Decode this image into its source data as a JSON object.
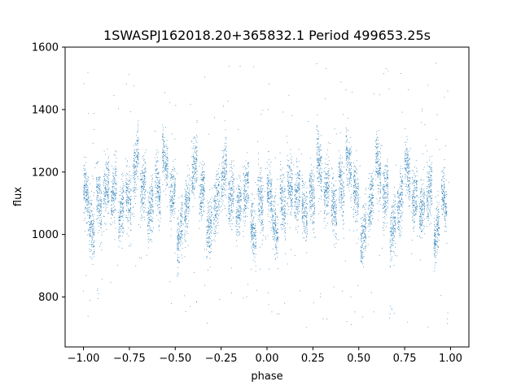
{
  "chart_data": {
    "type": "scatter",
    "title": "1SWASPJ162018.20+365832.1 Period 499653.25s",
    "xlabel": "phase",
    "ylabel": "flux",
    "xlim": [
      -1.1,
      1.1
    ],
    "ylim": [
      640,
      1600
    ],
    "x_ticks": [
      -1.0,
      -0.75,
      -0.5,
      -0.25,
      0.0,
      0.25,
      0.5,
      0.75,
      1.0
    ],
    "x_tick_labels": [
      "−1.00",
      "−0.75",
      "−0.50",
      "−0.25",
      "0.00",
      "0.25",
      "0.50",
      "0.75",
      "1.00"
    ],
    "y_ticks": [
      800,
      1000,
      1200,
      1400,
      1600
    ],
    "y_tick_labels": [
      "800",
      "1000",
      "1200",
      "1400",
      "1600"
    ],
    "grid": false,
    "point_color": "#1f77b4",
    "series": [
      {
        "x_range": [
          -1.0,
          1.0
        ],
        "segments": [
          {
            "phase": -0.985,
            "mean": 1130,
            "slope": 2200,
            "w": 0.03
          },
          {
            "phase": -0.955,
            "mean": 1020,
            "slope": 1800,
            "w": 0.03
          },
          {
            "phase": -0.915,
            "mean": 1100,
            "slope": 2500,
            "w": 0.03
          },
          {
            "phase": -0.875,
            "mean": 1150,
            "slope": 1500,
            "w": 0.03
          },
          {
            "phase": -0.835,
            "mean": 1130,
            "slope": 2000,
            "w": 0.03
          },
          {
            "phase": -0.795,
            "mean": 1070,
            "slope": 2400,
            "w": 0.03
          },
          {
            "phase": -0.755,
            "mean": 1120,
            "slope": 1800,
            "w": 0.03
          },
          {
            "phase": -0.715,
            "mean": 1230,
            "slope": 2600,
            "w": 0.03
          },
          {
            "phase": -0.675,
            "mean": 1150,
            "slope": 1600,
            "w": 0.03
          },
          {
            "phase": -0.635,
            "mean": 1080,
            "slope": 2000,
            "w": 0.03
          },
          {
            "phase": -0.595,
            "mean": 1150,
            "slope": 2400,
            "w": 0.03
          },
          {
            "phase": -0.555,
            "mean": 1230,
            "slope": 2800,
            "w": 0.03
          },
          {
            "phase": -0.515,
            "mean": 1130,
            "slope": 1500,
            "w": 0.03
          },
          {
            "phase": -0.475,
            "mean": 1000,
            "slope": 2200,
            "w": 0.03
          },
          {
            "phase": -0.435,
            "mean": 1100,
            "slope": 2400,
            "w": 0.03
          },
          {
            "phase": -0.395,
            "mean": 1220,
            "slope": 2000,
            "w": 0.03
          },
          {
            "phase": -0.355,
            "mean": 1130,
            "slope": 1800,
            "w": 0.03
          },
          {
            "phase": -0.315,
            "mean": 1020,
            "slope": 2200,
            "w": 0.03
          },
          {
            "phase": -0.275,
            "mean": 1100,
            "slope": 2400,
            "w": 0.03
          },
          {
            "phase": -0.235,
            "mean": 1200,
            "slope": 2600,
            "w": 0.03
          },
          {
            "phase": -0.195,
            "mean": 1120,
            "slope": 1600,
            "w": 0.03
          },
          {
            "phase": -0.155,
            "mean": 1080,
            "slope": 2000,
            "w": 0.03
          },
          {
            "phase": -0.115,
            "mean": 1140,
            "slope": 2200,
            "w": 0.03
          },
          {
            "phase": -0.075,
            "mean": 1010,
            "slope": 1800,
            "w": 0.03
          },
          {
            "phase": -0.035,
            "mean": 1110,
            "slope": 2400,
            "w": 0.03
          },
          {
            "phase": 0.015,
            "mean": 1130,
            "slope": 2200,
            "w": 0.03
          },
          {
            "phase": 0.045,
            "mean": 1020,
            "slope": 1800,
            "w": 0.03
          },
          {
            "phase": 0.085,
            "mean": 1100,
            "slope": 2500,
            "w": 0.03
          },
          {
            "phase": 0.125,
            "mean": 1150,
            "slope": 1500,
            "w": 0.03
          },
          {
            "phase": 0.165,
            "mean": 1130,
            "slope": 2000,
            "w": 0.03
          },
          {
            "phase": 0.205,
            "mean": 1070,
            "slope": 2400,
            "w": 0.03
          },
          {
            "phase": 0.245,
            "mean": 1120,
            "slope": 1800,
            "w": 0.03
          },
          {
            "phase": 0.285,
            "mean": 1230,
            "slope": 2600,
            "w": 0.03
          },
          {
            "phase": 0.325,
            "mean": 1150,
            "slope": 1600,
            "w": 0.03
          },
          {
            "phase": 0.365,
            "mean": 1080,
            "slope": 2000,
            "w": 0.03
          },
          {
            "phase": 0.405,
            "mean": 1150,
            "slope": 2400,
            "w": 0.03
          },
          {
            "phase": 0.445,
            "mean": 1230,
            "slope": 2800,
            "w": 0.03
          },
          {
            "phase": 0.485,
            "mean": 1130,
            "slope": 1500,
            "w": 0.03
          },
          {
            "phase": 0.525,
            "mean": 1000,
            "slope": 2200,
            "w": 0.03
          },
          {
            "phase": 0.565,
            "mean": 1100,
            "slope": 2400,
            "w": 0.03
          },
          {
            "phase": 0.605,
            "mean": 1220,
            "slope": 2000,
            "w": 0.03
          },
          {
            "phase": 0.645,
            "mean": 1130,
            "slope": 1800,
            "w": 0.03
          },
          {
            "phase": 0.685,
            "mean": 1020,
            "slope": 2200,
            "w": 0.03
          },
          {
            "phase": 0.725,
            "mean": 1100,
            "slope": 2400,
            "w": 0.03
          },
          {
            "phase": 0.765,
            "mean": 1200,
            "slope": 2600,
            "w": 0.03
          },
          {
            "phase": 0.805,
            "mean": 1120,
            "slope": 1600,
            "w": 0.03
          },
          {
            "phase": 0.845,
            "mean": 1080,
            "slope": 2000,
            "w": 0.03
          },
          {
            "phase": 0.885,
            "mean": 1140,
            "slope": 2200,
            "w": 0.03
          },
          {
            "phase": 0.925,
            "mean": 1010,
            "slope": 1800,
            "w": 0.03
          },
          {
            "phase": 0.965,
            "mean": 1110,
            "slope": 2400,
            "w": 0.03
          }
        ]
      }
    ]
  }
}
